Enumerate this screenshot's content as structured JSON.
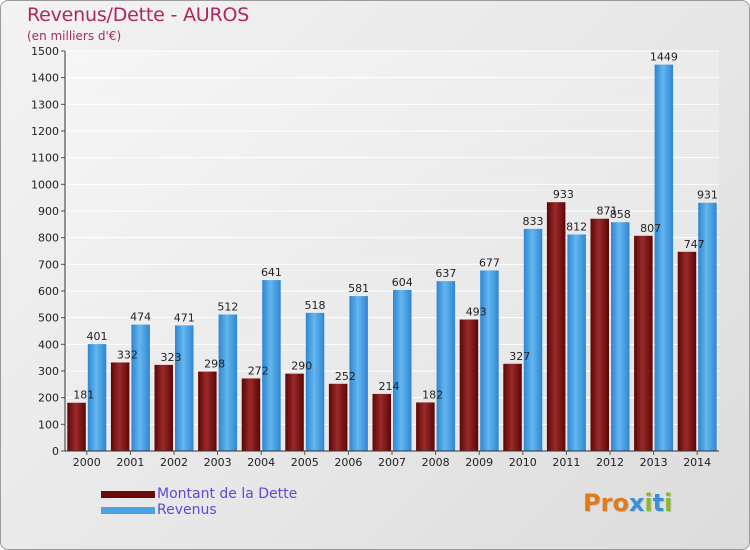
{
  "title": "Revenus/Dette - AUROS",
  "subtitle": "(en milliers d'€)",
  "legend": [
    {
      "label": "Montant de la Dette",
      "color": "#7a1010"
    },
    {
      "label": "Revenus",
      "color": "#4aa3e6"
    }
  ],
  "logo": {
    "text": "Proxiti",
    "letters": [
      "P",
      "r",
      "o",
      "x",
      "i",
      "t",
      "i"
    ],
    "colors": [
      "#e07b1b",
      "#e07b1b",
      "#e07b1b",
      "#3b8fd6",
      "#8ab82a",
      "#3b8fd6",
      "#8ab82a"
    ]
  },
  "chart_data": {
    "type": "bar",
    "categories": [
      "2000",
      "2001",
      "2002",
      "2003",
      "2004",
      "2005",
      "2006",
      "2007",
      "2008",
      "2009",
      "2010",
      "2011",
      "2012",
      "2013",
      "2014"
    ],
    "series": [
      {
        "name": "Montant de la Dette",
        "values": [
          181,
          332,
          323,
          298,
          272,
          290,
          252,
          214,
          182,
          493,
          327,
          933,
          871,
          807,
          747
        ],
        "color": "#7a1010"
      },
      {
        "name": "Revenus",
        "values": [
          401,
          474,
          471,
          512,
          641,
          518,
          581,
          604,
          637,
          677,
          833,
          812,
          858,
          1449,
          931
        ],
        "color": "#4aa3e6"
      }
    ],
    "ylim": [
      0,
      1500
    ],
    "yticks": [
      0,
      100,
      200,
      300,
      400,
      500,
      600,
      700,
      800,
      900,
      1000,
      1100,
      1200,
      1300,
      1400,
      1500
    ],
    "grid": true,
    "legend_position": "bottom-left"
  }
}
